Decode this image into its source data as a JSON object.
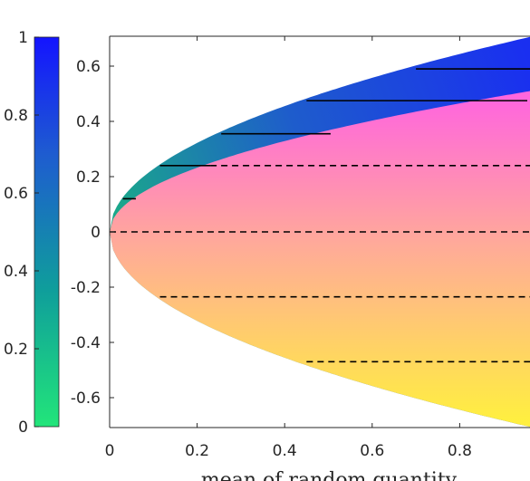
{
  "chart_data": {
    "type": "area",
    "title": "",
    "xlabel": "mean of random quantity",
    "ylabel": "",
    "xlim": [
      0,
      1
    ],
    "ylim": [
      -0.7,
      0.7
    ],
    "grid": false,
    "xticks": [
      {
        "value": 0,
        "label": "0"
      },
      {
        "value": 0.2,
        "label": "0.2"
      },
      {
        "value": 0.4,
        "label": "0.4"
      },
      {
        "value": 0.6,
        "label": "0.6"
      },
      {
        "value": 0.8,
        "label": "0.8"
      }
    ],
    "yticks": [
      {
        "value": 0.6,
        "label": "0.6"
      },
      {
        "value": 0.4,
        "label": "0.4"
      },
      {
        "value": 0.2,
        "label": "0.2"
      },
      {
        "value": 0,
        "label": "0"
      },
      {
        "value": -0.2,
        "label": "-0.2"
      },
      {
        "value": -0.4,
        "label": "-0.4"
      },
      {
        "value": -0.6,
        "label": "-0.6"
      }
    ],
    "colorbar": {
      "range": [
        0,
        1
      ],
      "placement": "left",
      "colors": [
        "#22e57a",
        "#0f9e9b",
        "#1e5cd0",
        "#1414ff"
      ],
      "ticks": [
        {
          "value": 1,
          "label": "1"
        },
        {
          "value": 0.8,
          "label": "0.8"
        },
        {
          "value": 0.6,
          "label": "0.6"
        },
        {
          "value": 0.4,
          "label": "0.4"
        },
        {
          "value": 0.2,
          "label": "0.2"
        },
        {
          "value": 0,
          "label": "0"
        }
      ]
    },
    "regions": {
      "upper_band": {
        "colors": [
          "#1aa88a",
          "#1e5ccc",
          "#1a2ff0"
        ]
      },
      "inner_region": {
        "colors": [
          "#ff66dd",
          "#ffaa99",
          "#ffef40"
        ]
      }
    },
    "solid_segments": [
      {
        "y": 0.12,
        "x_start": 0.03,
        "x_end": 0.06
      },
      {
        "y": 0.24,
        "x_start": 0.115,
        "x_end": 0.23
      },
      {
        "y": 0.355,
        "x_start": 0.255,
        "x_end": 0.505
      },
      {
        "y": 0.475,
        "x_start": 0.45,
        "x_end": 0.94
      },
      {
        "y": 0.59,
        "x_start": 0.7,
        "x_end": 1.0
      }
    ],
    "dashed_segments": [
      {
        "y": 0.24,
        "x_start": 0.23,
        "x_end": 1.0
      },
      {
        "y": 0.475,
        "x_start": 0.94,
        "x_end": 1.0
      },
      {
        "y": 0,
        "x_start": 0,
        "x_end": 1.0
      },
      {
        "y": -0.235,
        "x_start": 0.115,
        "x_end": 1.0
      },
      {
        "y": -0.47,
        "x_start": 0.45,
        "x_end": 1.0
      }
    ]
  }
}
